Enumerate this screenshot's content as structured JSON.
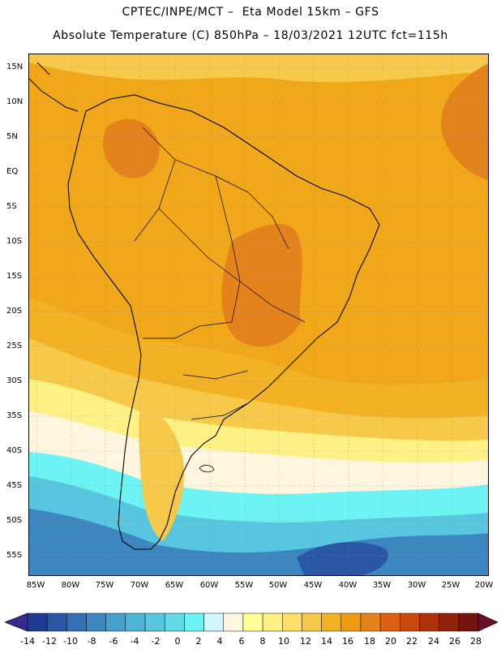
{
  "header": {
    "line1": "CPTEC/INPE/MCT –  Eta Model 15km – GFS",
    "line2": "Absolute Temperature (C) 850hPa – 18/03/2021 12UTC fct=115h"
  },
  "map": {
    "lat_labels": [
      "15N",
      "10N",
      "5N",
      "EQ",
      "5S",
      "10S",
      "15S",
      "20S",
      "25S",
      "30S",
      "35S",
      "40S",
      "45S",
      "50S",
      "55S"
    ],
    "lon_labels": [
      "85W",
      "80W",
      "75W",
      "70W",
      "65W",
      "60W",
      "55W",
      "50W",
      "45W",
      "40W",
      "35W",
      "30W",
      "25W",
      "20W"
    ]
  },
  "colorbar": {
    "labels": [
      "-14",
      "-12",
      "-10",
      "-8",
      "-6",
      "-4",
      "-2",
      "0",
      "2",
      "4",
      "6",
      "8",
      "10",
      "12",
      "14",
      "16",
      "18",
      "20",
      "22",
      "24",
      "26",
      "28"
    ],
    "colors": [
      "#1f3a93",
      "#2a56a6",
      "#3570b4",
      "#3d87c0",
      "#46a0cc",
      "#4fb5d5",
      "#57c6de",
      "#62dbe6",
      "#6df3f3",
      "#d2f7fb",
      "#fff6e0",
      "#ffff99",
      "#fdf084",
      "#fbdf66",
      "#f6c94a",
      "#f2b223",
      "#ee9c13",
      "#e4821b",
      "#dc6112",
      "#c9480e",
      "#b0320d",
      "#8f230c",
      "#721410"
    ],
    "left_cap_color": "#3b2a8a",
    "right_cap_color": "#6b0e2a"
  }
}
